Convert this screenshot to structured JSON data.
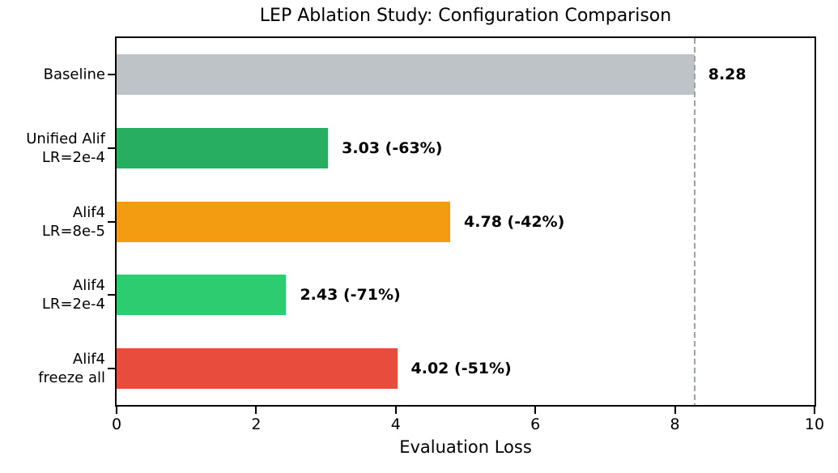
{
  "chart_data": {
    "type": "bar",
    "orientation": "horizontal",
    "title": "LEP Ablation Study: Configuration Comparison",
    "xlabel": "Evaluation Loss",
    "ylabel": "",
    "categories": [
      "Baseline",
      "Unified Alif\nLR=2e-4",
      "Alif4\nLR=8e-5",
      "Alif4\nLR=2e-4",
      "Alif4\nfreeze all"
    ],
    "values": [
      8.28,
      3.03,
      4.78,
      2.43,
      4.02
    ],
    "value_labels": [
      "8.28",
      "3.03 (-63%)",
      "4.78 (-42%)",
      "2.43 (-71%)",
      "4.02 (-51%)"
    ],
    "bar_colors": [
      "#bdc3c7",
      "#27ae60",
      "#f39c12",
      "#2ecc71",
      "#e74c3c"
    ],
    "xlim": [
      0,
      10
    ],
    "xticks": [
      "0",
      "2",
      "4",
      "6",
      "8",
      "10"
    ],
    "xtick_values": [
      0,
      2,
      4,
      6,
      8,
      10
    ],
    "grid": false,
    "legend": null,
    "reference_line": {
      "value": 8.28,
      "style": "dashed",
      "color": "#95a5a6"
    },
    "spine_color": "#000000",
    "background": "#ffffff"
  }
}
